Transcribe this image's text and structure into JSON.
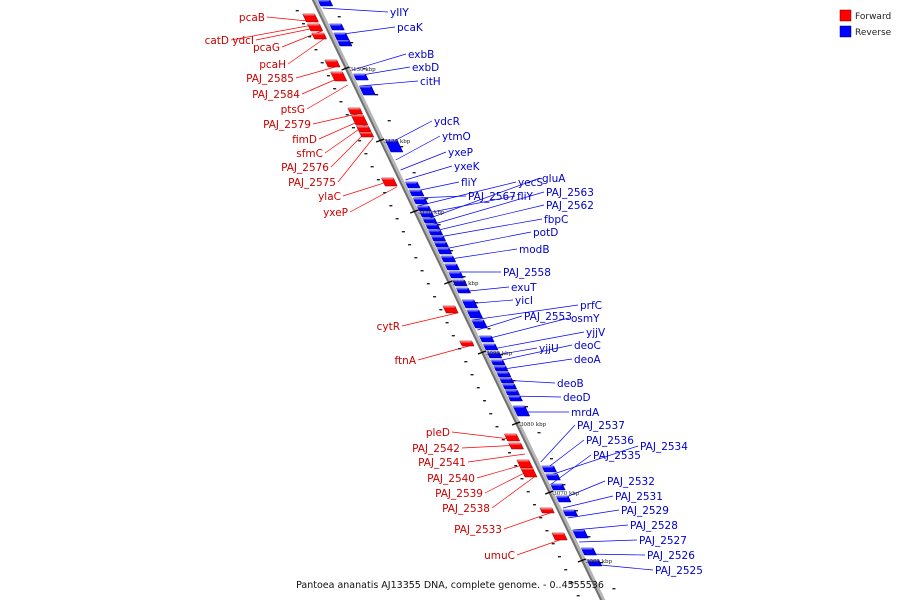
{
  "caption": "Pantoea ananatis AJ13355 DNA, complete genome. - 0..4555536",
  "legend": [
    {
      "label": "Forward",
      "color": "#ff0000"
    },
    {
      "label": "Reverse",
      "color": "#0000ff"
    }
  ],
  "kbp_ticks": [
    "3130 kbp",
    "3120 kbp",
    "3110 kbp",
    "3100 kbp",
    "3090 kbp",
    "3080 kbp",
    "3070 kbp",
    "3060 kbp"
  ],
  "forward_labels": [
    "pcaB",
    "catD",
    "ydcI",
    "pcaG",
    "pcaH",
    "PAJ_2585",
    "PAJ_2584",
    "ptsG",
    "PAJ_2579",
    "fimD",
    "sfmC",
    "PAJ_2576",
    "PAJ_2575",
    "ylaC",
    "yxeP",
    "cytR",
    "ftnA",
    "pleD",
    "PAJ_2542",
    "PAJ_2541",
    "PAJ_2540",
    "PAJ_2539",
    "PAJ_2538",
    "PAJ_2533",
    "umuC"
  ],
  "reverse_labels": [
    "yIIY",
    "pcaK",
    "exbB",
    "exbD",
    "citH",
    "ydcR",
    "ytmO",
    "yxeP",
    "yxeK",
    "fliY",
    "yecS",
    "PAJ_2567",
    "fliY",
    "gluA",
    "PAJ_2563",
    "PAJ_2562",
    "fbpC",
    "potD",
    "modB",
    "PAJ_2558",
    "exuT",
    "yicI",
    "prfC",
    "PAJ_2553",
    "osmY",
    "yjjV",
    "yjjU",
    "deoC",
    "deoA",
    "deoB",
    "deoD",
    "mrdA",
    "PAJ_2537",
    "PAJ_2536",
    "PAJ_2534",
    "PAJ_2535",
    "PAJ_2532",
    "PAJ_2531",
    "PAJ_2529",
    "PAJ_2528",
    "PAJ_2527",
    "PAJ_2526",
    "PAJ_2525"
  ]
}
